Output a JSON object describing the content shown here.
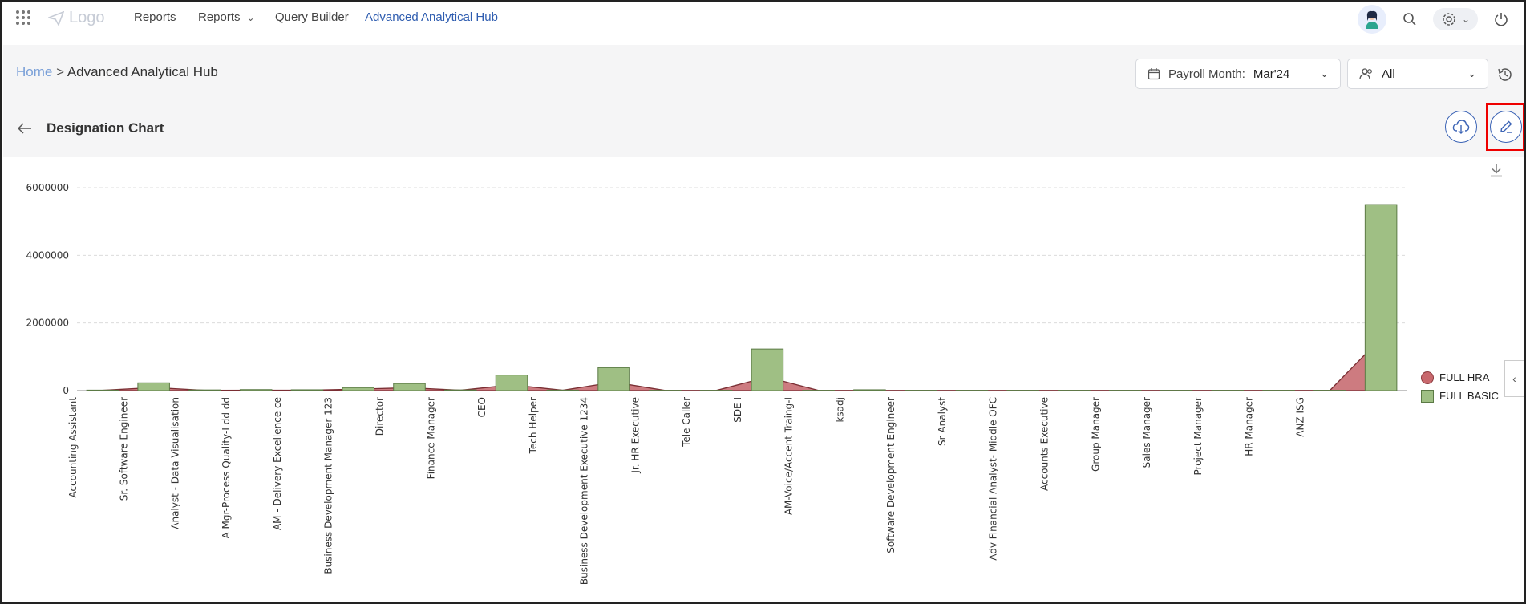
{
  "nav": {
    "logo_label": "Logo",
    "items": [
      "Reports",
      "Reports",
      "Query Builder",
      "Advanced Analytical Hub"
    ]
  },
  "breadcrumb": {
    "home": "Home",
    "separator": ">",
    "current": "Advanced Analytical Hub"
  },
  "filters": {
    "payroll_label": "Payroll Month:",
    "payroll_value": "Mar'24",
    "group_value": "All"
  },
  "page": {
    "title": "Designation Chart"
  },
  "colors": {
    "accent": "#2f5db0",
    "hra": "#c8686d",
    "basic": "#9fbf84"
  },
  "chart_data": {
    "type": "bar",
    "title": "",
    "xlabel": "",
    "ylabel": "",
    "ylim": [
      0,
      6000000
    ],
    "yticks": [
      "0",
      "2000000",
      "4000000",
      "6000000"
    ],
    "grid": true,
    "legend_position": "right",
    "categories": [
      "Accounting Assistant",
      "Sr. Software Engineer",
      "Analyst - Data Visualisation",
      "A Mgr-Process Quality-I dd dd",
      "AM - Delivery Excellence ce",
      "Business Development Manager 123",
      "Director",
      "Finance Manager",
      "CEO",
      "Tech Helper",
      "Business Development Executive 1234",
      "Jr. HR Executive",
      "Tele Caller",
      "SDE I",
      "AM-Voice/Accent Traing-I",
      "ksadj",
      "Software Development Engineer",
      "Sr Analyst",
      "Adv Financial Analyst- Middle OFC",
      "Accounts Executive",
      "Group Manager",
      "Sales Manager",
      "Project Manager",
      "HR Manager",
      "ANZ ISG",
      ""
    ],
    "series": [
      {
        "name": "FULL HRA",
        "type": "area",
        "values": [
          10000,
          90000,
          8000,
          12000,
          10000,
          45000,
          85000,
          10000,
          170000,
          10000,
          250000,
          5000,
          5000,
          400000,
          5000,
          5000,
          5000,
          5000,
          5000,
          5000,
          5000,
          5000,
          5000,
          5000,
          5000,
          1550000
        ]
      },
      {
        "name": "FULL BASIC",
        "type": "bar",
        "values": [
          15000,
          230000,
          20000,
          30000,
          25000,
          90000,
          210000,
          20000,
          460000,
          15000,
          680000,
          10000,
          10000,
          1230000,
          10000,
          25000,
          10000,
          10000,
          10000,
          10000,
          10000,
          10000,
          10000,
          10000,
          10000,
          5500000
        ]
      }
    ]
  }
}
